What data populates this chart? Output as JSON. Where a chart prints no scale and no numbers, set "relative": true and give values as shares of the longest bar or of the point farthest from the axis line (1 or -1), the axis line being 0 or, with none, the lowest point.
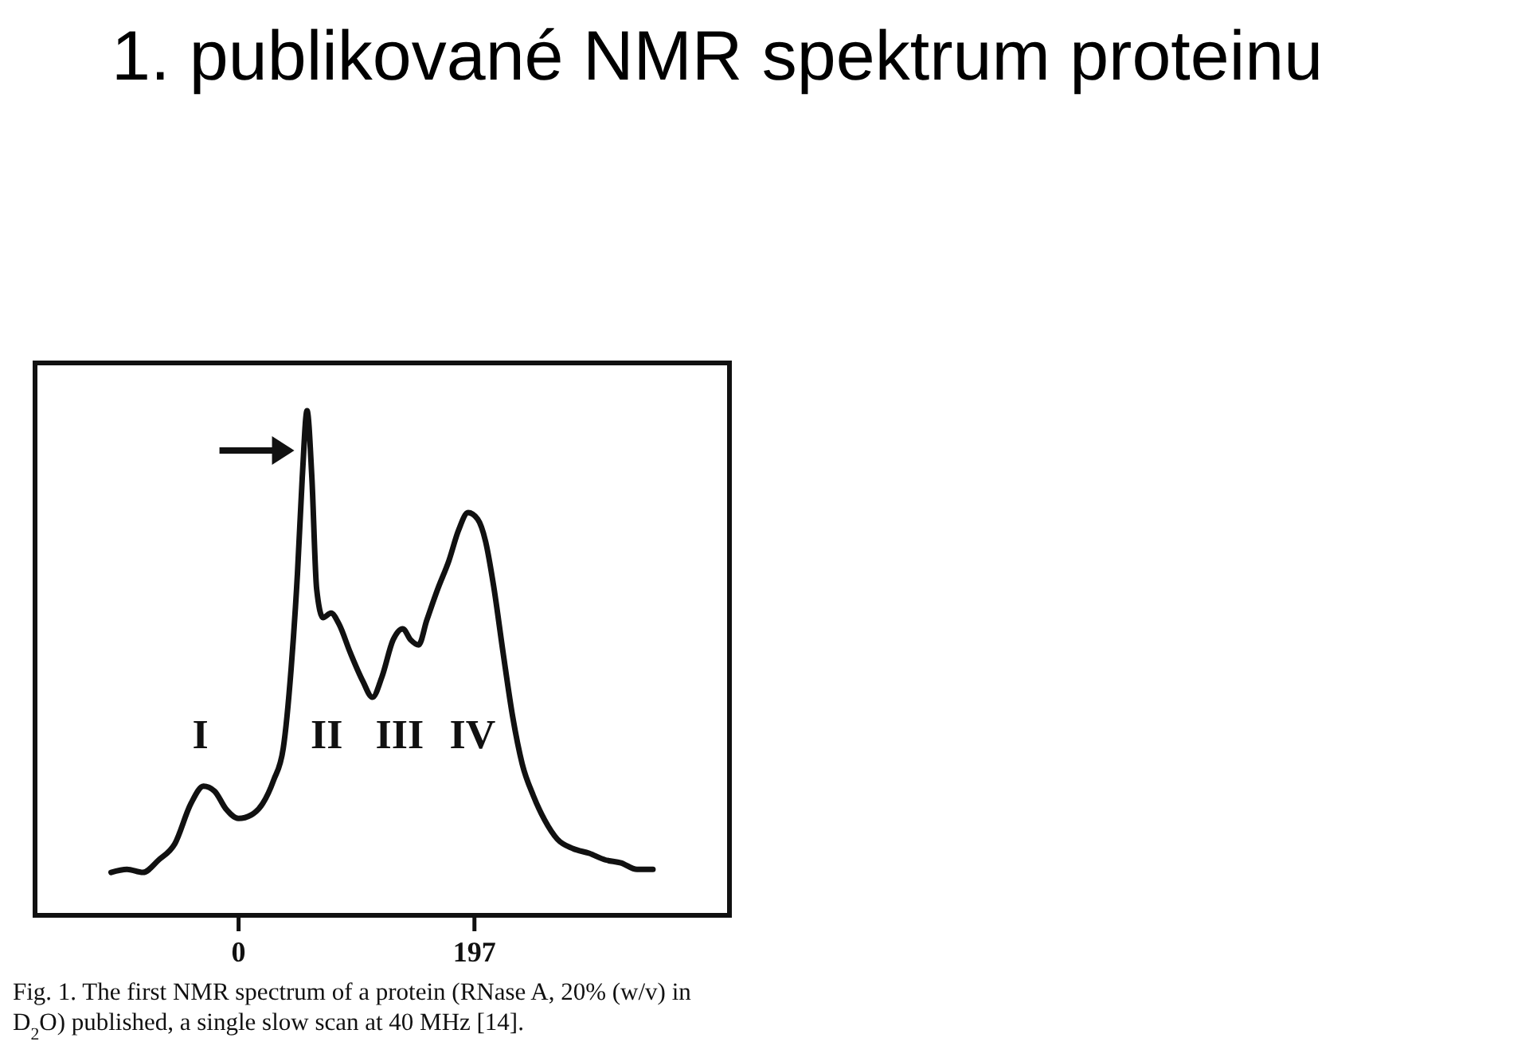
{
  "chart_data": {
    "type": "line",
    "title": "1. publikované NMR spektrum proteinu",
    "relative": true,
    "xlim": [
      -170,
      410
    ],
    "xticks": [
      0,
      197
    ],
    "color": "#111111",
    "line_style": "solid",
    "marker": "none",
    "x": [
      -106.5,
      -93.2,
      -79.9,
      -66.6,
      -53.2,
      -39.9,
      -29.3,
      -20,
      -10.6,
      0,
      10.6,
      20,
      29.3,
      37.3,
      43.9,
      49.2,
      53.2,
      57.2,
      61.2,
      65.2,
      70.5,
      77.2,
      83.9,
      93.2,
      103.8,
      111.8,
      119.8,
      129.1,
      137.1,
      143.7,
      150.4,
      157.1,
      166.4,
      175.7,
      183.7,
      191.7,
      199.7,
      206.3,
      213,
      220.9,
      228.9,
      236.9,
      246.2,
      255.6,
      266.2,
      279.5,
      292.8,
      306.1,
      319.4,
      332.8,
      346.1
    ],
    "values": [
      0.085,
      0.091,
      0.085,
      0.11,
      0.142,
      0.221,
      0.256,
      0.246,
      0.211,
      0.192,
      0.199,
      0.221,
      0.268,
      0.331,
      0.489,
      0.678,
      0.868,
      1,
      0.868,
      0.647,
      0.59,
      0.599,
      0.577,
      0.521,
      0.464,
      0.432,
      0.473,
      0.546,
      0.568,
      0.546,
      0.536,
      0.584,
      0.647,
      0.703,
      0.763,
      0.798,
      0.785,
      0.741,
      0.653,
      0.521,
      0.394,
      0.3,
      0.237,
      0.189,
      0.151,
      0.132,
      0.123,
      0.11,
      0.104,
      0.091,
      0.091
    ],
    "annotations": [
      "I",
      "II",
      "III",
      "IV",
      "Fig. 1. The first NMR spectrum of a protein (RNase A, 20% (w/v) in D$_{2}$O) published, a single slow scan at 40 MHz [14]."
    ]
  }
}
